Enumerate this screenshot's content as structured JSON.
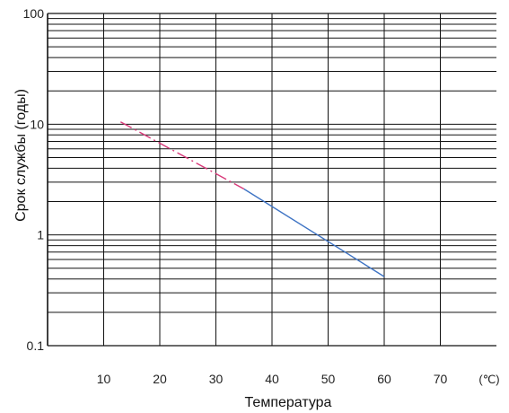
{
  "chart_data": {
    "type": "line",
    "xlabel": "Температура",
    "ylabel": "Срок службы (годы)",
    "x_unit": "(℃)",
    "y_scale": "log",
    "xlim": [
      0,
      80
    ],
    "ylim": [
      0.1,
      100
    ],
    "x_ticks": [
      10,
      20,
      30,
      40,
      50,
      60,
      70
    ],
    "x_tick_labels": [
      "10",
      "20",
      "30",
      "40",
      "50",
      "60",
      "70"
    ],
    "y_tick_labels": [
      {
        "value": 100,
        "label": "100"
      },
      {
        "value": 10,
        "label": "10"
      },
      {
        "value": 1,
        "label": "1"
      },
      {
        "value": 0.1,
        "label": "0.1"
      }
    ],
    "grid": true,
    "legend": "none",
    "series": [
      {
        "style": "dash-dot",
        "color": "#d83a7a",
        "x": [
          13,
          35
        ],
        "y": [
          10.5,
          2.6
        ]
      },
      {
        "style": "solid",
        "color": "#3f74c4",
        "x": [
          35,
          60
        ],
        "y": [
          2.6,
          0.42
        ]
      }
    ]
  }
}
